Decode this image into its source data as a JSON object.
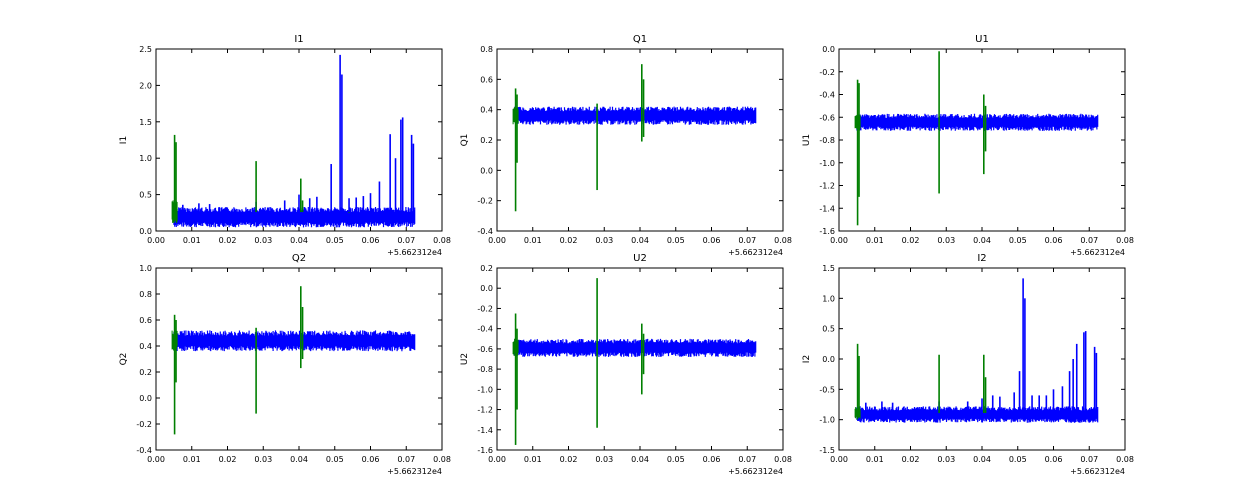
{
  "figure": {
    "colors": {
      "series1": "#0000ff",
      "series2": "#007f00"
    },
    "offset_label": "+5.662312e4"
  },
  "chart_data": [
    {
      "type": "line",
      "title": "I1",
      "ylabel": "I1",
      "xlim": [
        0.0,
        0.08
      ],
      "ylim": [
        0.0,
        2.5
      ],
      "x_ticks": [
        "0.00",
        "0.01",
        "0.02",
        "0.03",
        "0.04",
        "0.05",
        "0.06",
        "0.07",
        "0.08"
      ],
      "y_ticks": [
        "0.0",
        "0.5",
        "1.0",
        "1.5",
        "2.0",
        "2.5"
      ],
      "x_offset": "+5.662312e4",
      "series": [
        {
          "color": "#0000ff",
          "band": {
            "x": [
              0.005,
              0.0725
            ],
            "low": 0.05,
            "high": 0.33
          },
          "spikes": [
            [
              0.0075,
              0.36
            ],
            [
              0.012,
              0.38
            ],
            [
              0.015,
              0.37
            ],
            [
              0.028,
              0.4
            ],
            [
              0.036,
              0.42
            ],
            [
              0.04,
              0.5
            ],
            [
              0.043,
              0.45
            ],
            [
              0.045,
              0.47
            ],
            [
              0.049,
              0.92
            ],
            [
              0.0515,
              2.42
            ],
            [
              0.052,
              2.15
            ],
            [
              0.054,
              0.45
            ],
            [
              0.056,
              0.46
            ],
            [
              0.058,
              0.48
            ],
            [
              0.06,
              0.52
            ],
            [
              0.0625,
              0.68
            ],
            [
              0.0655,
              1.33
            ],
            [
              0.067,
              1.0
            ],
            [
              0.0685,
              1.53
            ],
            [
              0.069,
              1.56
            ],
            [
              0.0715,
              1.32
            ],
            [
              0.072,
              1.2
            ]
          ]
        },
        {
          "color": "#007f00",
          "band": {
            "x": [
              0.0045,
              0.006
            ],
            "low": 0.1,
            "high": 0.42
          },
          "spikes": [
            [
              0.0052,
              1.32
            ],
            [
              0.0056,
              1.22
            ],
            [
              0.028,
              0.96
            ],
            [
              0.0405,
              0.72
            ],
            [
              0.041,
              0.42
            ],
            [
              0.054,
              0.25
            ]
          ],
          "dips": []
        }
      ]
    },
    {
      "type": "line",
      "title": "Q1",
      "ylabel": "Q1",
      "xlim": [
        0.0,
        0.08
      ],
      "ylim": [
        -0.4,
        0.8
      ],
      "x_ticks": [
        "0.00",
        "0.01",
        "0.02",
        "0.03",
        "0.04",
        "0.05",
        "0.06",
        "0.07",
        "0.08"
      ],
      "y_ticks": [
        "-0.4",
        "-0.2",
        "0.0",
        "0.2",
        "0.4",
        "0.6",
        "0.8"
      ],
      "x_offset": "+5.662312e4",
      "series": [
        {
          "color": "#0000ff",
          "band": {
            "x": [
              0.005,
              0.0725
            ],
            "low": 0.3,
            "high": 0.42
          },
          "spikes": [],
          "dips": []
        },
        {
          "color": "#007f00",
          "band": {
            "x": [
              0.0045,
              0.006
            ],
            "low": 0.3,
            "high": 0.42
          },
          "spikes": [
            [
              0.0052,
              0.54
            ],
            [
              0.0056,
              0.5
            ],
            [
              0.028,
              0.44
            ],
            [
              0.0405,
              0.7
            ],
            [
              0.041,
              0.6
            ]
          ],
          "dips": [
            [
              0.0052,
              -0.27
            ],
            [
              0.0056,
              0.05
            ],
            [
              0.028,
              -0.13
            ],
            [
              0.0405,
              0.19
            ],
            [
              0.041,
              0.22
            ]
          ]
        }
      ]
    },
    {
      "type": "line",
      "title": "U1",
      "ylabel": "U1",
      "xlim": [
        0.0,
        0.08
      ],
      "ylim": [
        -1.6,
        0.0
      ],
      "x_ticks": [
        "0.00",
        "0.01",
        "0.02",
        "0.03",
        "0.04",
        "0.05",
        "0.06",
        "0.07",
        "0.08"
      ],
      "y_ticks": [
        "-1.6",
        "-1.4",
        "-1.2",
        "-1.0",
        "-0.8",
        "-0.6",
        "-0.4",
        "-0.2",
        "0.0"
      ],
      "x_offset": "+5.662312e4",
      "series": [
        {
          "color": "#0000ff",
          "band": {
            "x": [
              0.005,
              0.0725
            ],
            "low": -0.72,
            "high": -0.57
          },
          "spikes": [],
          "dips": []
        },
        {
          "color": "#007f00",
          "band": {
            "x": [
              0.0045,
              0.006
            ],
            "low": -0.72,
            "high": -0.57
          },
          "spikes": [
            [
              0.0052,
              -0.27
            ],
            [
              0.0056,
              -0.3
            ],
            [
              0.028,
              -0.02
            ],
            [
              0.0405,
              -0.4
            ],
            [
              0.041,
              -0.5
            ]
          ],
          "dips": [
            [
              0.0052,
              -1.55
            ],
            [
              0.0056,
              -1.3
            ],
            [
              0.028,
              -1.27
            ],
            [
              0.0405,
              -1.1
            ],
            [
              0.041,
              -0.9
            ]
          ]
        }
      ]
    },
    {
      "type": "line",
      "title": "Q2",
      "ylabel": "Q2",
      "xlim": [
        0.0,
        0.08
      ],
      "ylim": [
        -0.4,
        1.0
      ],
      "x_ticks": [
        "0.00",
        "0.01",
        "0.02",
        "0.03",
        "0.04",
        "0.05",
        "0.06",
        "0.07",
        "0.08"
      ],
      "y_ticks": [
        "-0.4",
        "-0.2",
        "0.0",
        "0.2",
        "0.4",
        "0.6",
        "0.8",
        "1.0"
      ],
      "x_offset": "+5.662312e4",
      "series": [
        {
          "color": "#0000ff",
          "band": {
            "x": [
              0.005,
              0.0725
            ],
            "low": 0.36,
            "high": 0.52
          },
          "spikes": [],
          "dips": []
        },
        {
          "color": "#007f00",
          "band": {
            "x": [
              0.0045,
              0.006
            ],
            "low": 0.36,
            "high": 0.52
          },
          "spikes": [
            [
              0.0052,
              0.64
            ],
            [
              0.0056,
              0.6
            ],
            [
              0.028,
              0.54
            ],
            [
              0.0405,
              0.86
            ],
            [
              0.041,
              0.7
            ]
          ],
          "dips": [
            [
              0.0052,
              -0.28
            ],
            [
              0.0056,
              0.12
            ],
            [
              0.028,
              -0.12
            ],
            [
              0.0405,
              0.23
            ],
            [
              0.041,
              0.3
            ]
          ]
        }
      ]
    },
    {
      "type": "line",
      "title": "U2",
      "ylabel": "U2",
      "xlim": [
        0.0,
        0.08
      ],
      "ylim": [
        -1.6,
        0.2
      ],
      "x_ticks": [
        "0.00",
        "0.01",
        "0.02",
        "0.03",
        "0.04",
        "0.05",
        "0.06",
        "0.07",
        "0.08"
      ],
      "y_ticks": [
        "-1.6",
        "-1.4",
        "-1.2",
        "-1.0",
        "-0.8",
        "-0.6",
        "-0.4",
        "-0.2",
        "0.0",
        "0.2"
      ],
      "x_offset": "+5.662312e4",
      "series": [
        {
          "color": "#0000ff",
          "band": {
            "x": [
              0.005,
              0.0725
            ],
            "low": -0.68,
            "high": -0.5
          },
          "spikes": [],
          "dips": []
        },
        {
          "color": "#007f00",
          "band": {
            "x": [
              0.0045,
              0.006
            ],
            "low": -0.68,
            "high": -0.5
          },
          "spikes": [
            [
              0.0052,
              -0.25
            ],
            [
              0.0056,
              -0.4
            ],
            [
              0.028,
              0.1
            ],
            [
              0.0405,
              -0.35
            ],
            [
              0.041,
              -0.45
            ]
          ],
          "dips": [
            [
              0.0052,
              -1.55
            ],
            [
              0.0056,
              -1.2
            ],
            [
              0.028,
              -1.38
            ],
            [
              0.0405,
              -1.05
            ],
            [
              0.041,
              -0.85
            ]
          ]
        }
      ]
    },
    {
      "type": "line",
      "title": "I2",
      "ylabel": "I2",
      "xlim": [
        0.0,
        0.08
      ],
      "ylim": [
        -1.5,
        1.5
      ],
      "x_ticks": [
        "0.00",
        "0.01",
        "0.02",
        "0.03",
        "0.04",
        "0.05",
        "0.06",
        "0.07",
        "0.08"
      ],
      "y_ticks": [
        "-1.5",
        "-1.0",
        "-0.5",
        "0.0",
        "0.5",
        "1.0",
        "1.5"
      ],
      "x_offset": "+5.662312e4",
      "series": [
        {
          "color": "#0000ff",
          "band": {
            "x": [
              0.005,
              0.0725
            ],
            "low": -1.05,
            "high": -0.78
          },
          "spikes": [
            [
              0.0075,
              -0.72
            ],
            [
              0.012,
              -0.7
            ],
            [
              0.015,
              -0.72
            ],
            [
              0.028,
              -0.7
            ],
            [
              0.036,
              -0.7
            ],
            [
              0.04,
              -0.65
            ],
            [
              0.043,
              -0.6
            ],
            [
              0.045,
              -0.62
            ],
            [
              0.049,
              -0.55
            ],
            [
              0.0505,
              -0.2
            ],
            [
              0.0515,
              1.33
            ],
            [
              0.052,
              1.0
            ],
            [
              0.054,
              -0.6
            ],
            [
              0.056,
              -0.6
            ],
            [
              0.058,
              -0.6
            ],
            [
              0.06,
              -0.5
            ],
            [
              0.0625,
              -0.45
            ],
            [
              0.0645,
              -0.2
            ],
            [
              0.0655,
              0.0
            ],
            [
              0.0665,
              0.25
            ],
            [
              0.0685,
              0.44
            ],
            [
              0.069,
              0.46
            ],
            [
              0.0715,
              0.2
            ],
            [
              0.072,
              0.1
            ]
          ],
          "dips": []
        },
        {
          "color": "#007f00",
          "band": {
            "x": [
              0.0045,
              0.006
            ],
            "low": -1.0,
            "high": -0.78
          },
          "spikes": [
            [
              0.0052,
              0.25
            ],
            [
              0.0056,
              0.05
            ],
            [
              0.028,
              0.07
            ],
            [
              0.0405,
              0.07
            ],
            [
              0.041,
              -0.3
            ]
          ],
          "dips": []
        }
      ]
    }
  ]
}
